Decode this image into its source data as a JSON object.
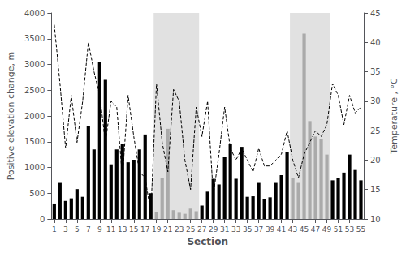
{
  "chart_data": {
    "type": "bar",
    "xlabel": "Section",
    "ylabel": "Positive elevation change, m",
    "y2label": "Temperature , °C",
    "x": [
      1,
      2,
      3,
      4,
      5,
      6,
      7,
      8,
      9,
      10,
      11,
      12,
      13,
      14,
      15,
      16,
      17,
      18,
      19,
      20,
      21,
      22,
      23,
      24,
      25,
      26,
      27,
      28,
      29,
      30,
      31,
      32,
      33,
      34,
      35,
      36,
      37,
      38,
      39,
      40,
      41,
      42,
      43,
      44,
      45,
      46,
      47,
      48,
      49,
      50,
      51,
      52,
      53,
      54,
      55
    ],
    "xlim": [
      0.5,
      55.5
    ],
    "xticks": [
      1,
      3,
      5,
      7,
      9,
      11,
      13,
      15,
      17,
      19,
      21,
      23,
      25,
      27,
      29,
      31,
      33,
      35,
      37,
      39,
      41,
      43,
      45,
      47,
      49,
      51,
      53,
      55
    ],
    "ylim": [
      0,
      4000
    ],
    "yticks": [
      0,
      500,
      1000,
      1500,
      2000,
      2500,
      3000,
      3500,
      4000
    ],
    "y2lim": [
      10,
      45
    ],
    "y2ticks": [
      10,
      15,
      20,
      25,
      30,
      35,
      40,
      45
    ],
    "grid": false,
    "shaded_spans": [
      {
        "from": 18.5,
        "to": 26.5,
        "color": "#c8c8c8"
      },
      {
        "from": 42.5,
        "to": 49.5,
        "color": "#c8c8c8"
      }
    ],
    "series": [
      {
        "type": "bar",
        "values": [
          300,
          700,
          350,
          400,
          580,
          430,
          1800,
          1350,
          3050,
          2700,
          1060,
          1350,
          1450,
          1100,
          1150,
          1350,
          1640,
          500,
          130,
          800,
          1750,
          170,
          120,
          100,
          200,
          150,
          260,
          530,
          780,
          670,
          1200,
          1450,
          780,
          1400,
          430,
          440,
          700,
          380,
          420,
          700,
          850,
          1300,
          800,
          700,
          3600,
          1900,
          1600,
          1550,
          1250,
          750,
          800,
          900,
          1250,
          950,
          750
        ],
        "colors": [
          "#000000",
          "#000000",
          "#000000",
          "#000000",
          "#000000",
          "#000000",
          "#000000",
          "#000000",
          "#000000",
          "#000000",
          "#000000",
          "#000000",
          "#000000",
          "#000000",
          "#000000",
          "#000000",
          "#000000",
          "#000000",
          "#aaaaaa",
          "#aaaaaa",
          "#aaaaaa",
          "#aaaaaa",
          "#aaaaaa",
          "#aaaaaa",
          "#aaaaaa",
          "#aaaaaa",
          "#000000",
          "#000000",
          "#000000",
          "#000000",
          "#000000",
          "#000000",
          "#000000",
          "#000000",
          "#000000",
          "#000000",
          "#000000",
          "#000000",
          "#000000",
          "#000000",
          "#000000",
          "#000000",
          "#aaaaaa",
          "#aaaaaa",
          "#aaaaaa",
          "#aaaaaa",
          "#aaaaaa",
          "#aaaaaa",
          "#aaaaaa",
          "#000000",
          "#000000",
          "#000000",
          "#000000",
          "#000000",
          "#000000"
        ]
      },
      {
        "type": "line",
        "axis": "y2",
        "color": "#000000",
        "line_style": "dashed",
        "values": [
          43,
          33,
          22,
          31,
          23,
          30,
          40,
          35,
          31,
          23,
          30,
          29,
          17,
          31,
          24,
          18,
          17,
          11,
          33,
          23,
          18,
          32,
          30,
          20,
          15,
          29,
          24,
          30,
          14,
          21,
          29,
          22,
          20,
          22,
          20,
          18,
          22,
          19,
          19,
          20,
          21,
          25,
          20,
          17,
          21,
          23,
          25,
          24,
          26,
          33,
          31,
          26,
          31,
          28,
          29
        ]
      }
    ]
  }
}
